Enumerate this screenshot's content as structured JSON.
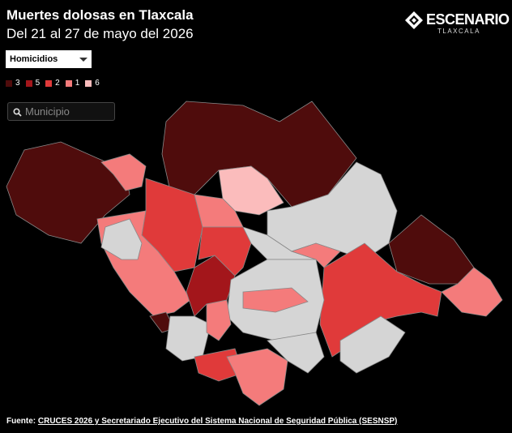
{
  "header": {
    "title": "Muertes dolosas en Tlaxcala",
    "subtitle": "Del 21 al 27 de mayo del 2026"
  },
  "logo": {
    "name": "ESCENARIO",
    "region": "TLAXCALA"
  },
  "controls": {
    "dropdown": "Homicidios",
    "search_placeholder": "Municipio"
  },
  "legend": [
    {
      "label": 3,
      "color": "#4f0c0c"
    },
    {
      "label": 5,
      "color": "#a3161b"
    },
    {
      "label": 2,
      "color": "#e03a3a"
    },
    {
      "label": 1,
      "color": "#f47b7b"
    },
    {
      "label": 6,
      "color": "#fbbcbc"
    }
  ],
  "footer": {
    "prefix": "Fuente:",
    "link": "CRUCES 2026 y Secretariado Ejecutivo del Sistema Nacional de Seguridad Pública (SESNSP)"
  }
}
